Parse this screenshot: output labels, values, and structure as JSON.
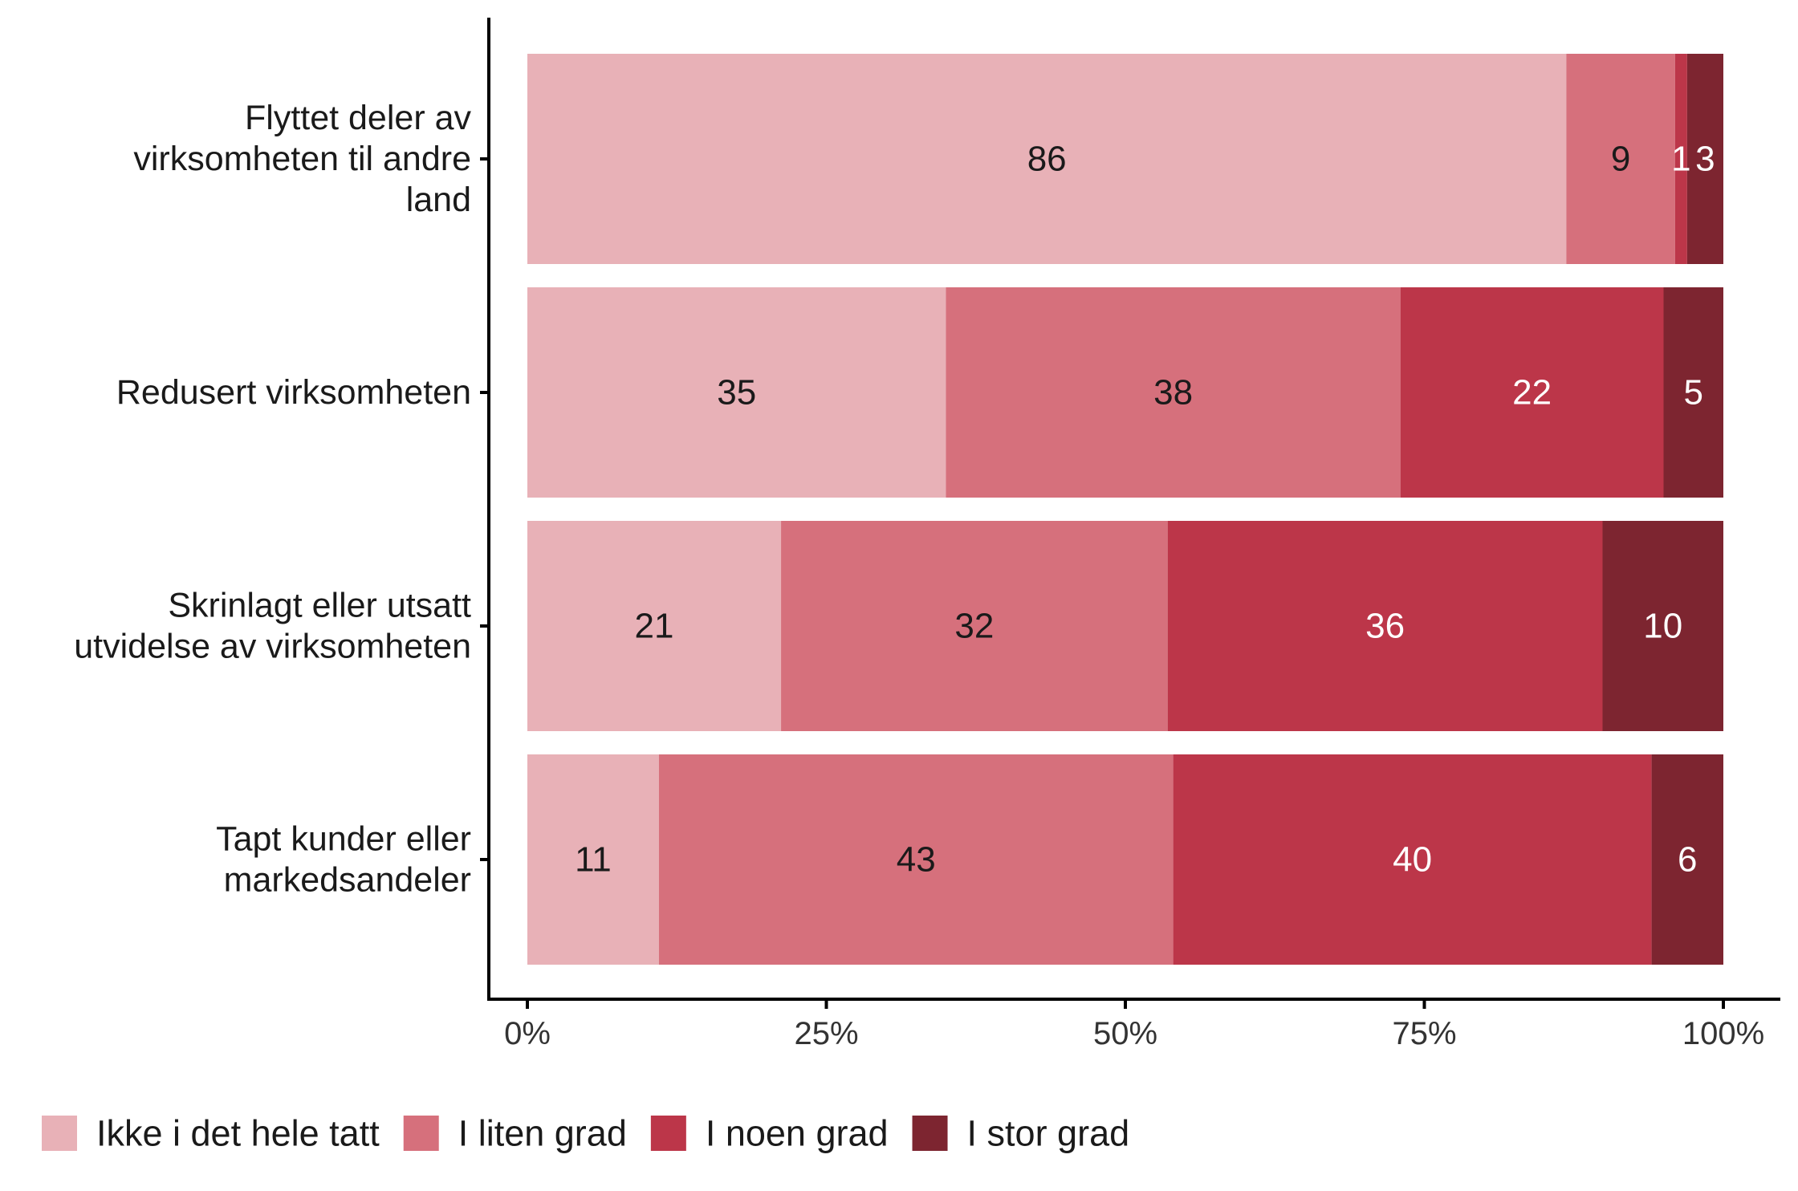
{
  "chart_data": {
    "type": "bar",
    "orientation": "horizontal",
    "stacked": true,
    "percent_scale": true,
    "categories": [
      [
        "Flyttet deler av",
        "virksomheten til andre",
        "land"
      ],
      [
        "Redusert virksomheten"
      ],
      [
        "Skrinlagt eller utsatt",
        "utvidelse av virksomheten"
      ],
      [
        "Tapt kunder eller",
        "markedsandeler"
      ]
    ],
    "series": [
      {
        "name": "Ikke i det hele tatt",
        "color": "#e8b1b7",
        "label_color": "#1a1a1a",
        "values": [
          86,
          35,
          21,
          11
        ]
      },
      {
        "name": "I liten grad",
        "color": "#d6707c",
        "label_color": "#1a1a1a",
        "values": [
          9,
          38,
          32,
          43
        ]
      },
      {
        "name": "I noen grad",
        "color": "#bc3649",
        "label_color": "#ffffff",
        "values": [
          1,
          22,
          36,
          40
        ]
      },
      {
        "name": "I stor grad",
        "color": "#7d2530",
        "label_color": "#ffffff",
        "values": [
          3,
          5,
          10,
          6
        ]
      }
    ],
    "xticks": [
      "0%",
      "25%",
      "50%",
      "75%",
      "100%"
    ],
    "xlim": [
      0,
      100
    ],
    "xlabel": "",
    "ylabel": "",
    "grid": false,
    "legend_position": "bottom"
  }
}
